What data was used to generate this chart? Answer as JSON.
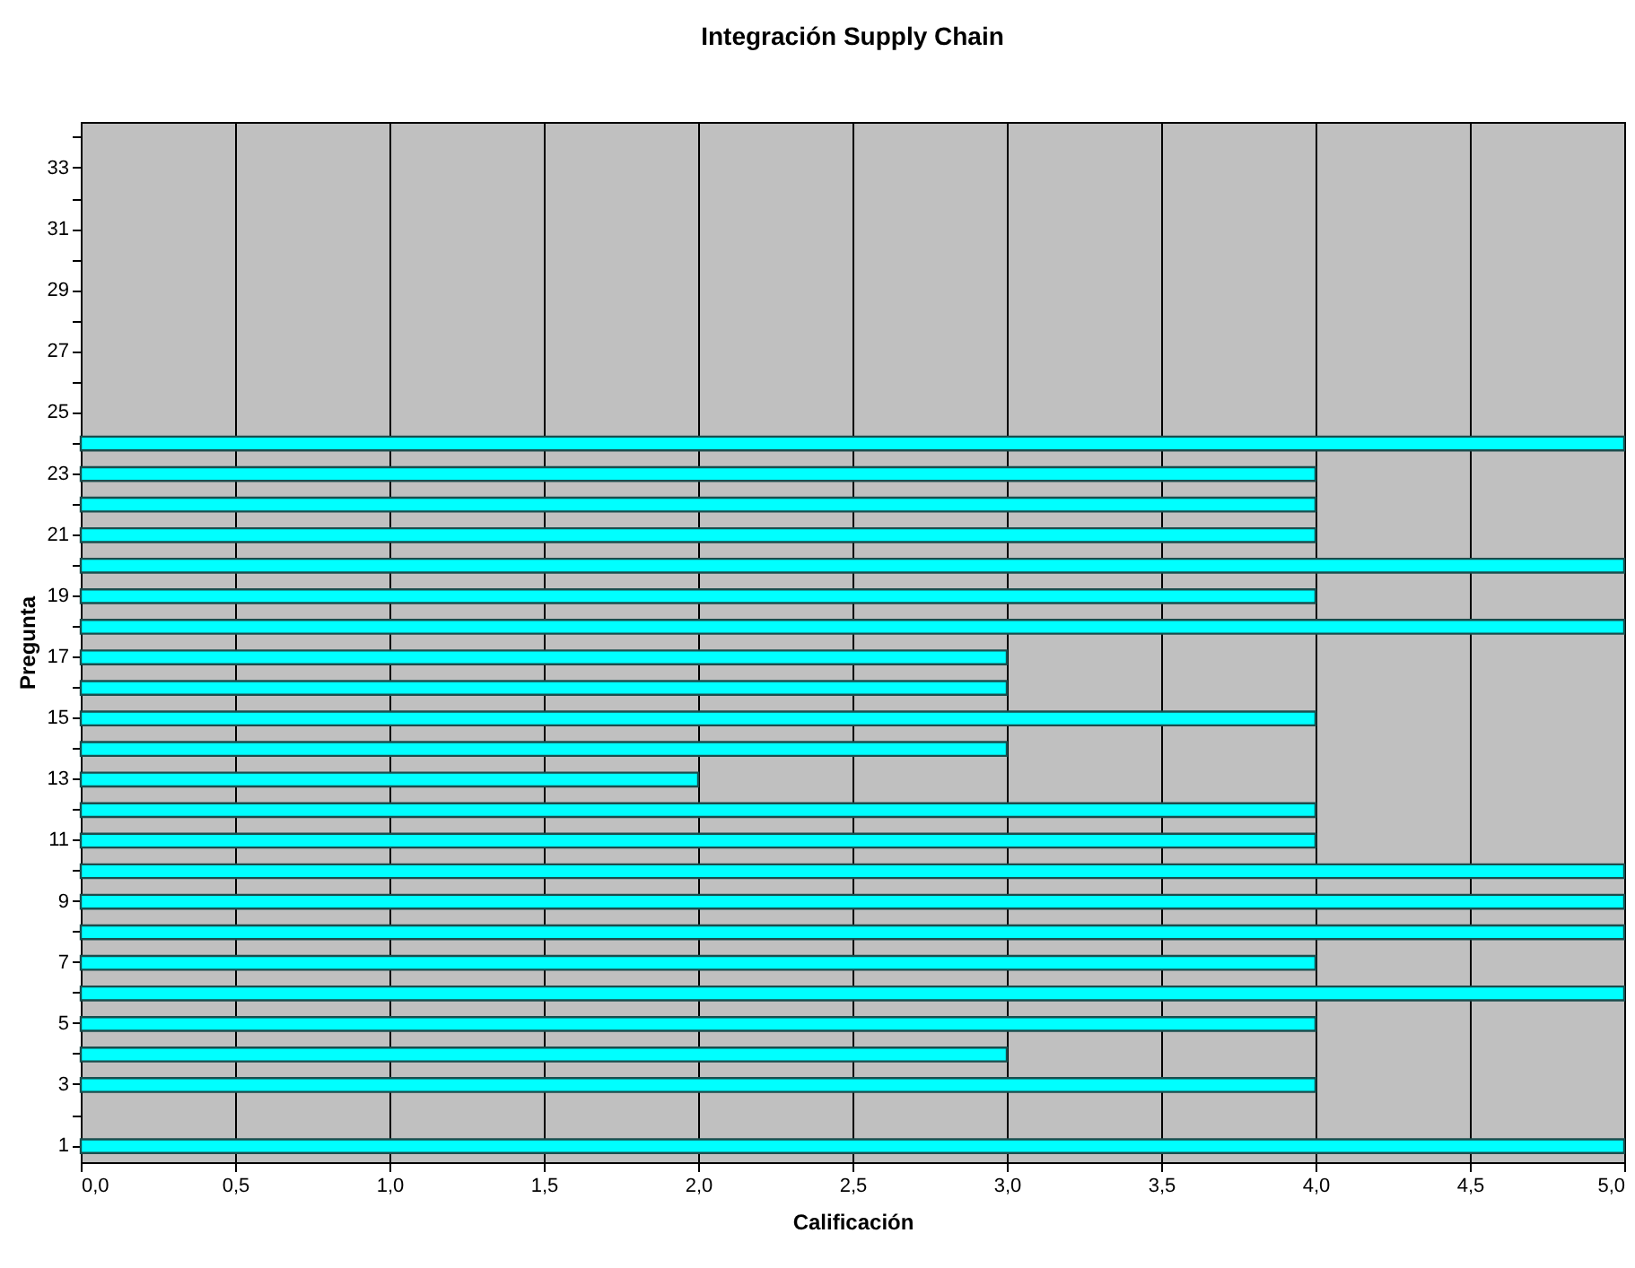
{
  "chart_data": {
    "type": "bar",
    "orientation": "horizontal",
    "title": "Integración Supply Chain",
    "xlabel": "Calificación",
    "ylabel": "Pregunta",
    "categories": [
      null,
      "33",
      null,
      "31",
      null,
      "29",
      null,
      "27",
      null,
      "25",
      null,
      "23",
      null,
      "21",
      null,
      "19",
      null,
      "17",
      null,
      "15",
      null,
      "13",
      null,
      "11",
      null,
      "9",
      null,
      "7",
      null,
      "5",
      null,
      "3",
      null,
      "1"
    ],
    "values": [
      null,
      null,
      null,
      null,
      null,
      null,
      null,
      null,
      null,
      null,
      5,
      4,
      4,
      4,
      5,
      4,
      5,
      3,
      3,
      4,
      3,
      2,
      4,
      4,
      5,
      5,
      5,
      4,
      5,
      4,
      3,
      4,
      null,
      5
    ],
    "color": "#00ffff",
    "xlim": [
      0,
      5
    ],
    "xticks": [
      {
        "value": 0,
        "label": "0,0"
      },
      {
        "value": 0.5,
        "label": "0,5"
      },
      {
        "value": 1,
        "label": "1,0"
      },
      {
        "value": 1.5,
        "label": "1,5"
      },
      {
        "value": 2,
        "label": "2,0"
      },
      {
        "value": 2.5,
        "label": "2,5"
      },
      {
        "value": 3,
        "label": "3,0"
      },
      {
        "value": 3.5,
        "label": "3,5"
      },
      {
        "value": 4,
        "label": "4,0"
      },
      {
        "value": 4.5,
        "label": "4,5"
      },
      {
        "value": 5,
        "label": "5,0"
      }
    ],
    "grid": "x"
  }
}
